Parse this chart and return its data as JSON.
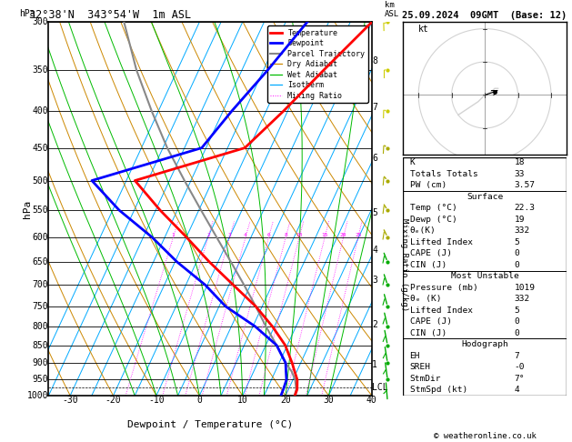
{
  "title_left": "32°38'N  343°54'W  1m ASL",
  "title_right": "25.09.2024  09GMT  (Base: 12)",
  "xlabel": "Dewpoint / Temperature (°C)",
  "ylabel_left": "hPa",
  "ylabel_right_km": "km\nASL",
  "ylabel_mixing": "Mixing Ratio (g/kg)",
  "pressure_levels": [
    300,
    350,
    400,
    450,
    500,
    550,
    600,
    650,
    700,
    750,
    800,
    850,
    900,
    950,
    1000
  ],
  "pressure_min": 300,
  "pressure_max": 1000,
  "T_min": -35,
  "T_max": 40,
  "skew_amount": 40,
  "temp_P": [
    1019,
    980,
    950,
    925,
    900,
    850,
    800,
    750,
    700,
    650,
    600,
    550,
    500,
    450,
    400,
    350,
    300
  ],
  "temp_T": [
    22.3,
    22.0,
    21.0,
    19.5,
    18.0,
    14.5,
    9.5,
    3.5,
    -4.0,
    -12.0,
    -20.0,
    -29.0,
    -38.0,
    -16.0,
    -11.0,
    -6.0,
    0.0
  ],
  "dewp_P": [
    1019,
    980,
    950,
    925,
    900,
    850,
    800,
    750,
    700,
    650,
    600,
    550,
    500,
    450,
    400,
    350,
    300
  ],
  "dewp_T": [
    19.0,
    18.8,
    18.5,
    17.5,
    16.5,
    12.5,
    5.5,
    -3.5,
    -10.5,
    -19.5,
    -28.0,
    -38.5,
    -48.0,
    -26.0,
    -23.0,
    -19.0,
    -15.0
  ],
  "parcel_P": [
    1019,
    980,
    950,
    925,
    900,
    850,
    800,
    750,
    700,
    650,
    600,
    550,
    500,
    450,
    400,
    350,
    300
  ],
  "parcel_T": [
    22.3,
    21.8,
    20.5,
    18.8,
    16.5,
    12.5,
    8.0,
    3.5,
    -1.5,
    -7.0,
    -13.0,
    -19.5,
    -26.5,
    -34.0,
    -41.5,
    -49.5,
    -57.5
  ],
  "isotherm_temps": [
    -40,
    -35,
    -30,
    -25,
    -20,
    -15,
    -10,
    -5,
    0,
    5,
    10,
    15,
    20,
    25,
    30,
    35,
    40
  ],
  "dry_adiabat_thetas": [
    -40,
    -30,
    -20,
    -10,
    0,
    10,
    20,
    30,
    40,
    50,
    60,
    70,
    80,
    90,
    100
  ],
  "wet_adiabat_base": [
    -15,
    -10,
    -5,
    0,
    5,
    10,
    15,
    20,
    25,
    30
  ],
  "mixing_ratio_vals": [
    1,
    2,
    3,
    4,
    6,
    8,
    10,
    15,
    20,
    25
  ],
  "color_temp": "#ff0000",
  "color_dewp": "#0000ff",
  "color_parcel": "#888888",
  "color_dry_adiabat": "#cc8800",
  "color_wet_adiabat": "#00bb00",
  "color_isotherm": "#00aaff",
  "color_mixing_ratio": "#ff00ff",
  "lcl_pressure": 975,
  "km_labels": [
    1,
    2,
    3,
    4,
    5,
    6,
    7,
    8
  ],
  "km_pressures": [
    905,
    795,
    690,
    625,
    555,
    465,
    395,
    340
  ],
  "xtick_temps": [
    -30,
    -20,
    -10,
    0,
    10,
    20,
    30,
    40
  ],
  "info_K": "18",
  "info_TT": "33",
  "info_PW": "3.57",
  "info_surf_temp": "22.3",
  "info_surf_dewp": "19",
  "info_surf_theta": "332",
  "info_surf_li": "5",
  "info_surf_cape": "0",
  "info_surf_cin": "0",
  "info_mu_pres": "1019",
  "info_mu_theta": "332",
  "info_mu_li": "5",
  "info_mu_cape": "0",
  "info_mu_cin": "0",
  "info_eh": "7",
  "info_sreh": "-0",
  "info_stmdir": "7°",
  "info_stmspd": "4",
  "wind_barb_pressures": [
    1019,
    950,
    900,
    850,
    800,
    750,
    700,
    650,
    600,
    550,
    500,
    450,
    400,
    350,
    300
  ],
  "wind_barb_speeds": [
    3,
    5,
    7,
    8,
    10,
    12,
    15,
    13,
    10,
    8,
    6,
    5,
    4,
    5,
    7
  ],
  "wind_barb_dirs": [
    200,
    210,
    215,
    220,
    225,
    230,
    235,
    240,
    245,
    250,
    255,
    260,
    265,
    270,
    275
  ]
}
